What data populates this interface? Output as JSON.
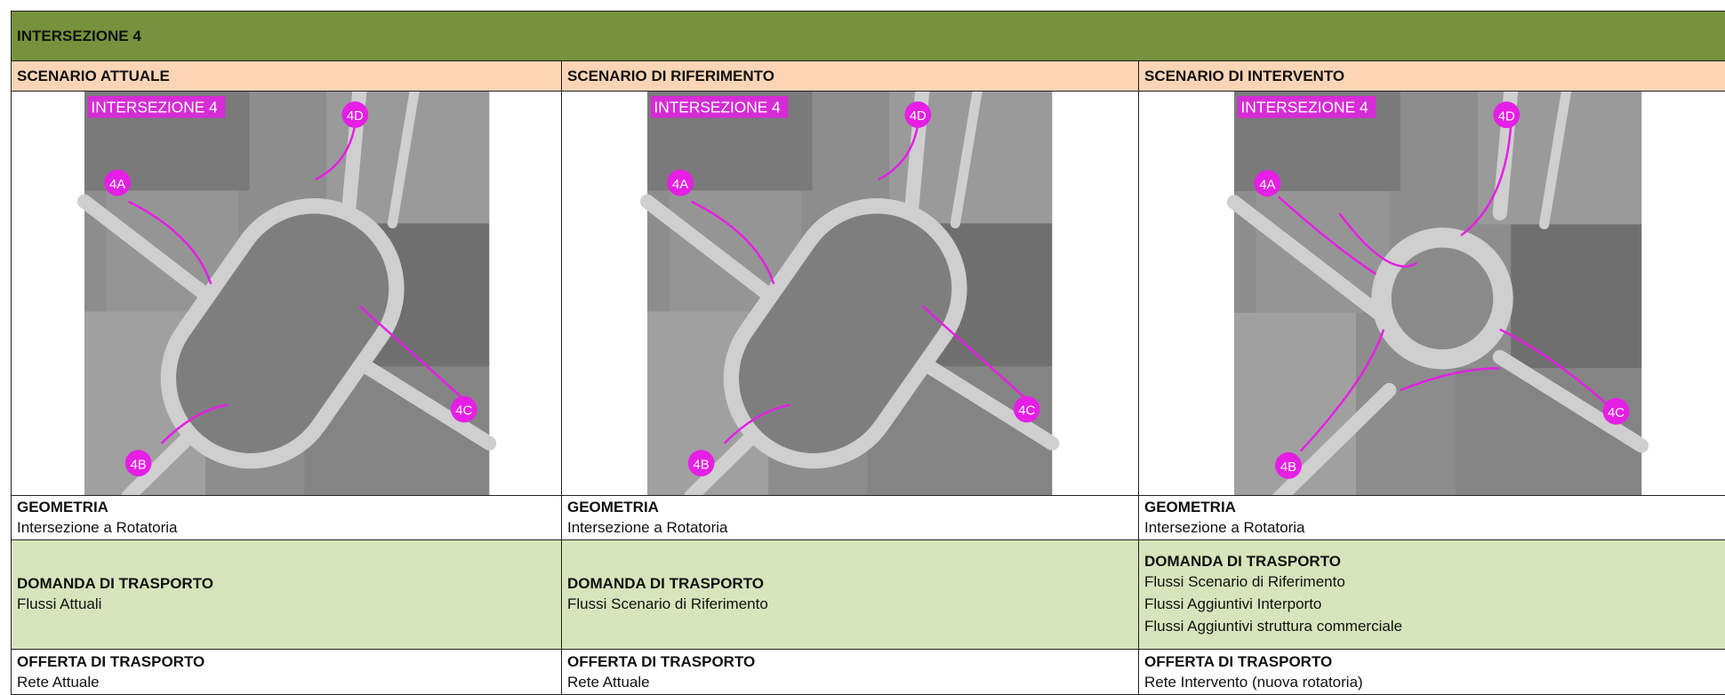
{
  "header": {
    "title": "INTERSEZIONE 4"
  },
  "columns": [
    {
      "title": "SCENARIO ATTUALE",
      "image": {
        "caption": "INTERSEZIONE 4",
        "markers": [
          "4D",
          "4A",
          "4C",
          "4B"
        ]
      },
      "geometria": {
        "heading": "GEOMETRIA",
        "lines": [
          "Intersezione a Rotatoria"
        ]
      },
      "domanda": {
        "heading": "DOMANDA DI TRASPORTO",
        "lines": [
          "Flussi Attuali"
        ]
      },
      "offerta": {
        "heading": "OFFERTA DI TRASPORTO",
        "lines": [
          "Rete Attuale"
        ]
      }
    },
    {
      "title": "SCENARIO DI RIFERIMENTO",
      "image": {
        "caption": "INTERSEZIONE 4",
        "markers": [
          "4D",
          "4A",
          "4C",
          "4B"
        ]
      },
      "geometria": {
        "heading": "GEOMETRIA",
        "lines": [
          "Intersezione a Rotatoria"
        ]
      },
      "domanda": {
        "heading": "DOMANDA DI TRASPORTO",
        "lines": [
          "Flussi Scenario di Riferimento"
        ]
      },
      "offerta": {
        "heading": "OFFERTA DI TRASPORTO",
        "lines": [
          "Rete Attuale"
        ]
      }
    },
    {
      "title": "SCENARIO DI INTERVENTO",
      "image": {
        "caption": "INTERSEZIONE 4",
        "markers": [
          "4D",
          "4A",
          "4C",
          "4B"
        ]
      },
      "geometria": {
        "heading": "GEOMETRIA",
        "lines": [
          "Intersezione a Rotatoria"
        ]
      },
      "domanda": {
        "heading": "DOMANDA DI TRASPORTO",
        "lines": [
          "Flussi Scenario di Riferimento",
          "Flussi Aggiuntivi Interporto",
          "Flussi Aggiuntivi struttura commerciale"
        ]
      },
      "offerta": {
        "heading": "OFFERTA DI TRASPORTO",
        "lines": [
          "Rete Intervento (nuova rotatoria)"
        ]
      }
    }
  ]
}
